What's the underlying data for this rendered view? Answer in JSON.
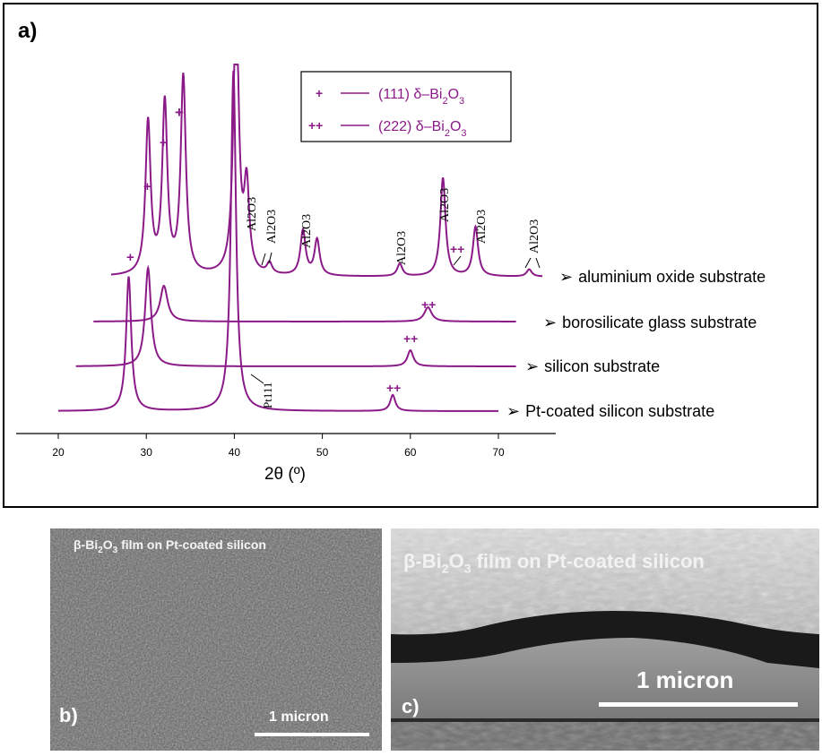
{
  "panel_a": {
    "label": "a)",
    "xlabel": "2θ (º)",
    "legend": [
      {
        "marker": "+",
        "text_pre": "(111) δ–Bi",
        "sub1": "2",
        "text_mid": "O",
        "sub2": "3"
      },
      {
        "marker": "++",
        "text_pre": "(222) δ–Bi",
        "sub1": "2",
        "text_mid": "O",
        "sub2": "3"
      }
    ],
    "series_labels": [
      "aluminium oxide substrate",
      "borosilicate glass substrate",
      "silicon substrate",
      "Pt-coated silicon substrate"
    ],
    "bullet": "➢",
    "al2o3_label": "Al2O3",
    "pt_label": "Pt111",
    "marker_single": "+",
    "marker_double": "++",
    "colors": {
      "trace": "#8b1a89",
      "axis": "#000000",
      "text": "#000000"
    }
  },
  "chart_data": {
    "type": "line",
    "title": "",
    "xlabel": "2θ (º)",
    "ylabel": "",
    "x_ticks": [
      20,
      30,
      40,
      50,
      60,
      70
    ],
    "xlim": [
      15,
      77
    ],
    "series": [
      {
        "name": "aluminium oxide substrate",
        "x_range": [
          26,
          75
        ],
        "peaks": [
          {
            "x": 30.2,
            "h": 170
          },
          {
            "x": 32.1,
            "h": 190
          },
          {
            "x": 34.2,
            "h": 220
          },
          {
            "x": 40.2,
            "h": 320
          },
          {
            "x": 41.4,
            "h": 95
          },
          {
            "x": 44.0,
            "h": 12
          },
          {
            "x": 47.8,
            "h": 50
          },
          {
            "x": 49.4,
            "h": 40
          },
          {
            "x": 58.8,
            "h": 14
          },
          {
            "x": 63.7,
            "h": 110
          },
          {
            "x": 67.4,
            "h": 55
          },
          {
            "x": 73.5,
            "h": 8
          }
        ]
      },
      {
        "name": "borosilicate glass substrate",
        "x_range": [
          24,
          72
        ],
        "peaks": [
          {
            "x": 32.0,
            "h": 40
          },
          {
            "x": 62.0,
            "h": 16
          }
        ]
      },
      {
        "name": "silicon substrate",
        "x_range": [
          22,
          72
        ],
        "peaks": [
          {
            "x": 30.2,
            "h": 110
          },
          {
            "x": 60.0,
            "h": 18
          }
        ]
      },
      {
        "name": "Pt-coated silicon substrate",
        "x_range": [
          20,
          70
        ],
        "peaks": [
          {
            "x": 28.0,
            "h": 150
          },
          {
            "x": 39.9,
            "h": 380
          },
          {
            "x": 58.0,
            "h": 18
          }
        ]
      }
    ]
  },
  "panel_b": {
    "caption_pre": "β-Bi",
    "caption_sub1": "2",
    "caption_mid": "O",
    "caption_sub2": "3",
    "caption_post": " film on Pt-coated silicon",
    "letter": "b)",
    "scale_label": "1 micron"
  },
  "panel_c": {
    "caption_pre": "β-Bi",
    "caption_sub1": "2",
    "caption_mid": "O",
    "caption_sub2": "3",
    "caption_post": " film on Pt-coated silicon",
    "letter": "c)",
    "scale_label": "1 micron"
  }
}
